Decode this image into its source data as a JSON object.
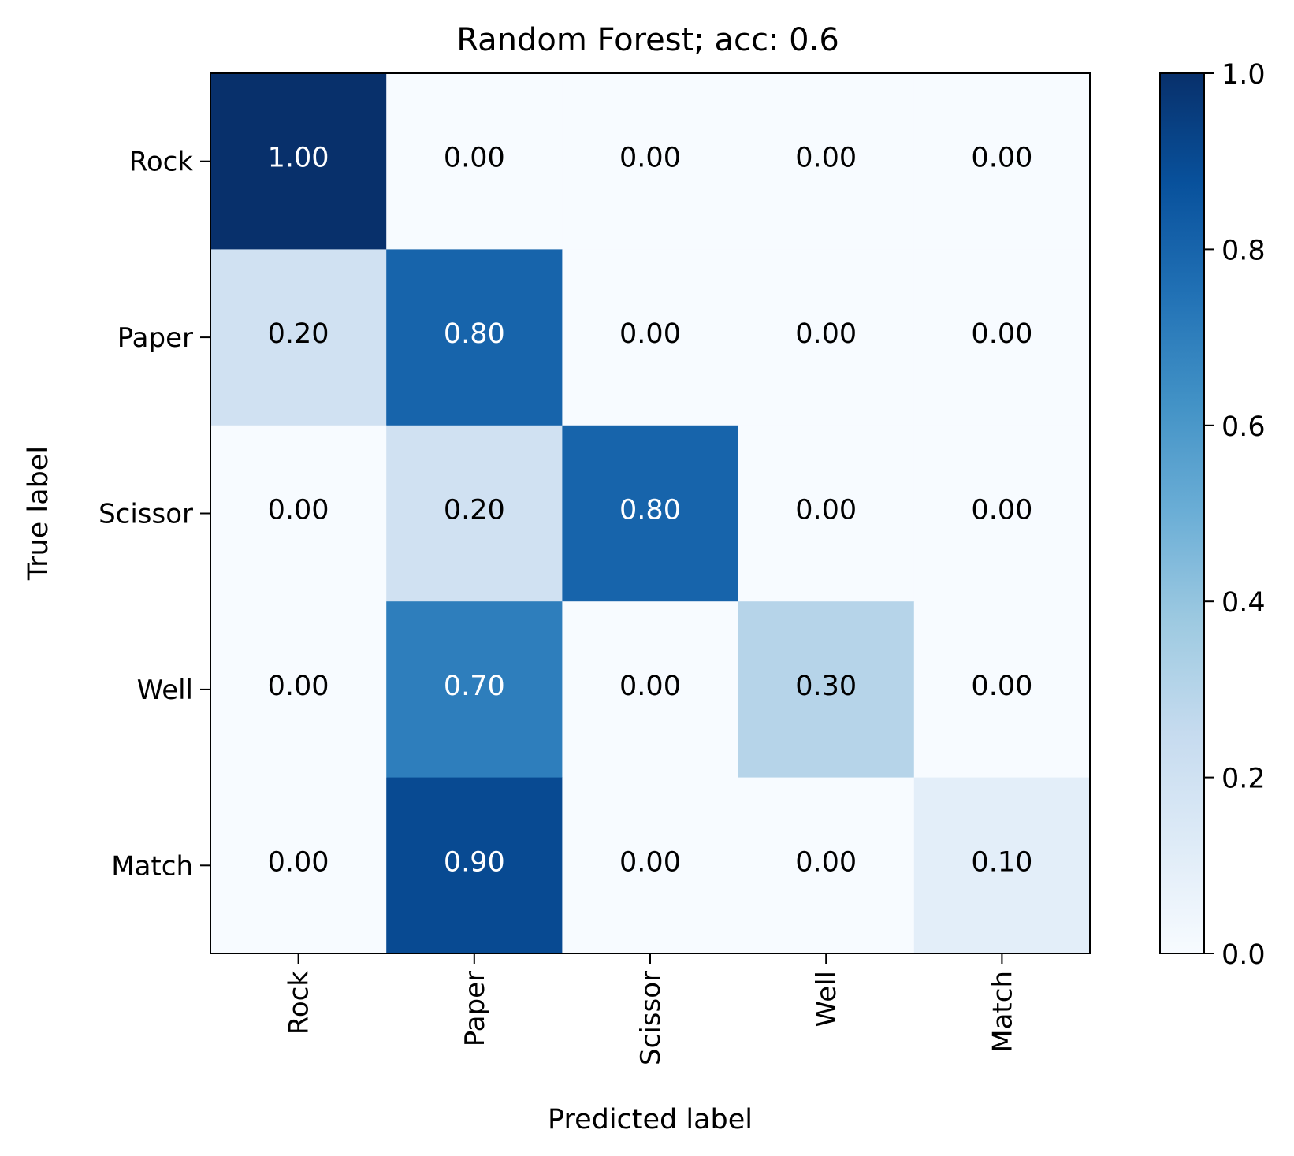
{
  "chart_data": {
    "type": "heatmap",
    "title": "Random Forest; acc: 0.6",
    "xlabel": "Predicted label",
    "ylabel": "True label",
    "x_categories": [
      "Rock",
      "Paper",
      "Scissor",
      "Well",
      "Match"
    ],
    "y_categories": [
      "Rock",
      "Paper",
      "Scissor",
      "Well",
      "Match"
    ],
    "values": [
      [
        1.0,
        0.0,
        0.0,
        0.0,
        0.0
      ],
      [
        0.2,
        0.8,
        0.0,
        0.0,
        0.0
      ],
      [
        0.0,
        0.2,
        0.8,
        0.0,
        0.0
      ],
      [
        0.0,
        0.7,
        0.0,
        0.3,
        0.0
      ],
      [
        0.0,
        0.9,
        0.0,
        0.0,
        0.1
      ]
    ],
    "value_labels": [
      [
        "1.00",
        "0.00",
        "0.00",
        "0.00",
        "0.00"
      ],
      [
        "0.20",
        "0.80",
        "0.00",
        "0.00",
        "0.00"
      ],
      [
        "0.00",
        "0.20",
        "0.80",
        "0.00",
        "0.00"
      ],
      [
        "0.00",
        "0.70",
        "0.00",
        "0.30",
        "0.00"
      ],
      [
        "0.00",
        "0.90",
        "0.00",
        "0.00",
        "0.10"
      ]
    ],
    "colormap": "Blues",
    "color_range": [
      0,
      1
    ],
    "colorbar": {
      "ticks": [
        0.0,
        0.2,
        0.4,
        0.6,
        0.8,
        1.0
      ],
      "tick_labels": [
        "0.0",
        "0.2",
        "0.4",
        "0.6",
        "0.8",
        "1.0"
      ]
    },
    "x_tick_rotation": "vertical",
    "grid": false
  }
}
